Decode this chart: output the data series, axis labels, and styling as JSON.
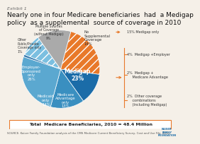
{
  "title": "Nearly one in four Medicare beneficiaries  had  a Medigap\npolicy  as a supplemental  source of coverage in 2010",
  "exhibit": "Exhibit 1",
  "subtitle_box": "Total  Medicare Beneficiaries, 2010 = 48.4 Million",
  "source": "SOURCE: Kaiser Family Foundation analysis of the CMS Medicare Current Beneficiary Survey, Cost and Use File, 2010.",
  "slices": [
    {
      "label": "Medigap\n23%",
      "value": 23,
      "color": "#E8792A",
      "hatch": "///",
      "text_color": "white",
      "bold": true
    },
    {
      "label": "Medicare\nAdvantage\nonly\n13%",
      "value": 13,
      "color": "#1B6CA8",
      "hatch": null,
      "text_color": "white",
      "bold": false
    },
    {
      "label": "Medicaid\nonly\n14%",
      "value": 14,
      "color": "#3A8FC0",
      "hatch": null,
      "text_color": "white",
      "bold": false
    },
    {
      "label": "Employer-\nSponsored\nonly\n26%",
      "value": 26,
      "color": "#5BA8D0",
      "hatch": null,
      "text_color": "white",
      "bold": false
    },
    {
      "label": "Other\nPublic/Private\nCoverage only\n1%",
      "value": 1,
      "color": "#3A7DB0",
      "hatch": null,
      "text_color": "#333333",
      "bold": false
    },
    {
      "label": "Multiple Sources\nof Coverage\n(without Medigap)\n9%",
      "value": 9,
      "color": "#7BBFE0",
      "hatch": "///",
      "text_color": "#333333",
      "bold": false
    },
    {
      "label": "No\nSupplemental\nCoverage\n14%",
      "value": 14,
      "color": "#AAAAAA",
      "hatch": null,
      "text_color": "#333333",
      "bold": false
    }
  ],
  "legend_texts": [
    "15% Medigap only",
    "4%  Medigap +Employer",
    "2%  Medigap +\n     Medicare Advantage",
    "2%  Other coverage\n     combinations\n     (Including Medigap)"
  ],
  "bg_color": "#F5F0E8",
  "title_fontsize": 6.5,
  "exhibit_fontsize": 4.5
}
